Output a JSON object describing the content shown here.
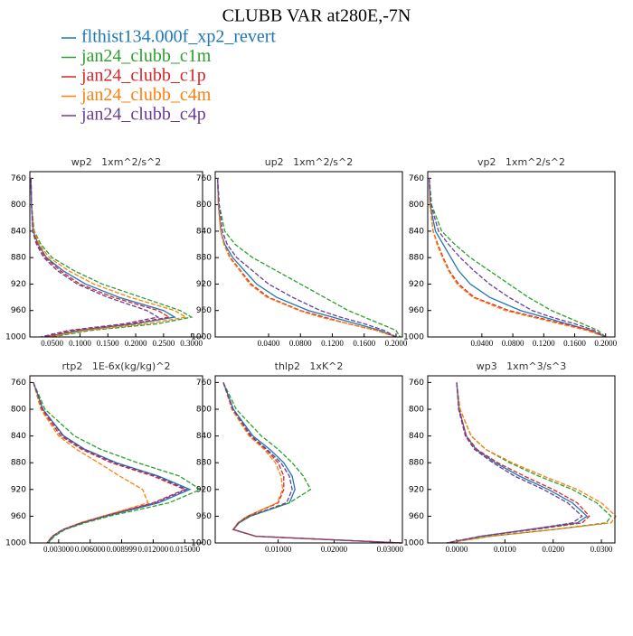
{
  "title": "CLUBB VAR at280E,-7N",
  "legend": [
    {
      "name": "flthist134.000f_xp2_revert",
      "color": "#1f77b4",
      "dash": false
    },
    {
      "name": "jan24_clubb_c1m",
      "color": "#2ca02c",
      "dash": true
    },
    {
      "name": "jan24_clubb_c1p",
      "color": "#d62728",
      "dash": true
    },
    {
      "name": "jan24_clubb_c4m",
      "color": "#ff7f0e",
      "dash": true
    },
    {
      "name": "jan24_clubb_c4p",
      "color": "#6a3d9a",
      "dash": true
    }
  ],
  "chart_data": [
    {
      "type": "line",
      "title": "wp2   1xm^2/s^2",
      "levels": [
        760,
        800,
        840,
        860,
        880,
        900,
        920,
        940,
        960,
        970,
        980,
        990,
        1000
      ],
      "ylim": [
        1000,
        750
      ],
      "yticks": [
        760,
        800,
        840,
        880,
        920,
        960,
        1000
      ],
      "xlim": [
        0.01,
        0.32
      ],
      "xticks": [
        {
          "value": 0.05,
          "label": "0.0500"
        },
        {
          "value": 0.1,
          "label": "0.1000"
        },
        {
          "value": 0.15,
          "label": "0.1500"
        },
        {
          "value": 0.2,
          "label": "0.2000"
        },
        {
          "value": 0.25,
          "label": "0.2500"
        },
        {
          "value": 0.3,
          "label": "0.3000"
        }
      ],
      "series": [
        {
          "values": [
            0.012,
            0.013,
            0.016,
            0.025,
            0.04,
            0.07,
            0.11,
            0.17,
            0.25,
            0.27,
            0.2,
            0.1,
            0.04
          ]
        },
        {
          "values": [
            0.012,
            0.013,
            0.018,
            0.03,
            0.05,
            0.09,
            0.14,
            0.21,
            0.28,
            0.3,
            0.24,
            0.12,
            0.05
          ]
        },
        {
          "values": [
            0.012,
            0.013,
            0.016,
            0.024,
            0.038,
            0.065,
            0.1,
            0.16,
            0.24,
            0.26,
            0.19,
            0.09,
            0.035
          ]
        },
        {
          "values": [
            0.012,
            0.013,
            0.017,
            0.027,
            0.045,
            0.08,
            0.125,
            0.19,
            0.27,
            0.29,
            0.22,
            0.11,
            0.045
          ]
        },
        {
          "values": [
            0.012,
            0.013,
            0.015,
            0.022,
            0.035,
            0.06,
            0.095,
            0.15,
            0.22,
            0.24,
            0.18,
            0.08,
            0.03
          ]
        }
      ]
    },
    {
      "type": "line",
      "title": "up2   1xm^2/s^2",
      "levels": [
        760,
        800,
        840,
        860,
        880,
        900,
        920,
        940,
        960,
        970,
        980,
        990,
        1000
      ],
      "ylim": [
        1000,
        750
      ],
      "yticks": [
        760,
        800,
        840,
        880,
        920,
        960,
        1000
      ],
      "xlim": [
        -0.027,
        0.208
      ],
      "xticks": [
        {
          "value": 0.04,
          "label": "0.0400"
        },
        {
          "value": 0.08,
          "label": "0.0800"
        },
        {
          "value": 0.12,
          "label": "0.1200"
        },
        {
          "value": 0.16,
          "label": "0.1600"
        },
        {
          "value": 0.2,
          "label": "0.2000"
        }
      ],
      "series": [
        {
          "values": [
            -0.024,
            -0.023,
            -0.02,
            -0.015,
            -0.005,
            0.01,
            0.025,
            0.05,
            0.09,
            0.12,
            0.15,
            0.18,
            0.2
          ]
        },
        {
          "values": [
            -0.024,
            -0.022,
            -0.015,
            -0.002,
            0.02,
            0.05,
            0.08,
            0.11,
            0.14,
            0.16,
            0.18,
            0.2,
            0.205
          ]
        },
        {
          "values": [
            -0.024,
            -0.023,
            -0.02,
            -0.016,
            -0.008,
            0.005,
            0.018,
            0.04,
            0.08,
            0.11,
            0.14,
            0.175,
            0.2
          ]
        },
        {
          "values": [
            -0.024,
            -0.023,
            -0.02,
            -0.016,
            -0.009,
            0.004,
            0.016,
            0.038,
            0.078,
            0.105,
            0.14,
            0.175,
            0.2
          ]
        },
        {
          "values": [
            -0.024,
            -0.022,
            -0.018,
            -0.012,
            0.0,
            0.02,
            0.04,
            0.07,
            0.105,
            0.13,
            0.16,
            0.185,
            0.2
          ]
        }
      ]
    },
    {
      "type": "line",
      "title": "vp2   1xm^2/s^2",
      "levels": [
        760,
        800,
        840,
        860,
        880,
        900,
        920,
        940,
        960,
        970,
        980,
        990,
        1000
      ],
      "ylim": [
        1000,
        750
      ],
      "yticks": [
        760,
        800,
        840,
        880,
        920,
        960,
        1000
      ],
      "xlim": [
        -0.03,
        0.212
      ],
      "xticks": [
        {
          "value": 0.04,
          "label": "0.0400"
        },
        {
          "value": 0.08,
          "label": "0.0800"
        },
        {
          "value": 0.12,
          "label": "0.1200"
        },
        {
          "value": 0.16,
          "label": "0.1600"
        },
        {
          "value": 0.2,
          "label": "0.2000"
        }
      ],
      "series": [
        {
          "values": [
            -0.028,
            -0.027,
            -0.02,
            -0.01,
            0.0,
            0.01,
            0.025,
            0.05,
            0.09,
            0.12,
            0.15,
            0.18,
            0.2
          ]
        },
        {
          "values": [
            -0.028,
            -0.025,
            -0.012,
            0.005,
            0.025,
            0.05,
            0.075,
            0.1,
            0.13,
            0.15,
            0.17,
            0.19,
            0.2
          ]
        },
        {
          "values": [
            -0.028,
            -0.027,
            -0.023,
            -0.017,
            -0.01,
            -0.002,
            0.01,
            0.03,
            0.075,
            0.11,
            0.145,
            0.18,
            0.2
          ]
        },
        {
          "values": [
            -0.028,
            -0.027,
            -0.023,
            -0.018,
            -0.011,
            -0.003,
            0.008,
            0.028,
            0.07,
            0.105,
            0.14,
            0.175,
            0.2
          ]
        },
        {
          "values": [
            -0.028,
            -0.026,
            -0.016,
            -0.003,
            0.012,
            0.03,
            0.05,
            0.075,
            0.105,
            0.13,
            0.16,
            0.185,
            0.2
          ]
        }
      ]
    },
    {
      "type": "line",
      "title": "rtp2   1E-6x(kg/kg)^2",
      "levels": [
        760,
        800,
        840,
        860,
        880,
        900,
        920,
        940,
        960,
        970,
        980,
        990,
        1000
      ],
      "ylim": [
        1000,
        750
      ],
      "yticks": [
        760,
        800,
        840,
        880,
        920,
        960,
        1000
      ],
      "xlim": [
        0.00026,
        0.0167
      ],
      "xticks": [
        {
          "value": 0.003,
          "label": "0.003000"
        },
        {
          "value": 0.006,
          "label": "0.006000"
        },
        {
          "value": 0.009,
          "label": "0.008999"
        },
        {
          "value": 0.012,
          "label": "0.012000"
        },
        {
          "value": 0.015,
          "label": "0.015000"
        }
      ],
      "series": [
        {
          "values": [
            0.0006,
            0.0015,
            0.0035,
            0.0055,
            0.0085,
            0.0125,
            0.0155,
            0.0125,
            0.0075,
            0.0053,
            0.0035,
            0.0025,
            0.002
          ]
        },
        {
          "values": [
            0.0006,
            0.0017,
            0.0045,
            0.007,
            0.0105,
            0.0145,
            0.0165,
            0.0135,
            0.0078,
            0.0055,
            0.0036,
            0.0026,
            0.002
          ]
        },
        {
          "values": [
            0.0006,
            0.0014,
            0.0032,
            0.0052,
            0.008,
            0.012,
            0.015,
            0.012,
            0.0072,
            0.0051,
            0.0034,
            0.0024,
            0.0019
          ]
        },
        {
          "values": [
            0.0006,
            0.0013,
            0.003,
            0.0047,
            0.0068,
            0.0088,
            0.011,
            0.0115,
            0.0072,
            0.005,
            0.0034,
            0.0024,
            0.0019
          ]
        },
        {
          "values": [
            0.0006,
            0.0015,
            0.0034,
            0.0054,
            0.0083,
            0.0123,
            0.0152,
            0.0122,
            0.0074,
            0.0052,
            0.0034,
            0.0024,
            0.0019
          ]
        }
      ]
    },
    {
      "type": "line",
      "title": "thlp2   1xK^2",
      "levels": [
        760,
        800,
        840,
        860,
        880,
        900,
        920,
        940,
        960,
        970,
        980,
        990,
        1000
      ],
      "ylim": [
        1000,
        750
      ],
      "yticks": [
        760,
        800,
        840,
        880,
        920,
        960,
        1000
      ],
      "xlim": [
        -0.00125,
        0.0322
      ],
      "xticks": [
        {
          "value": 0.01,
          "label": "0.01000"
        },
        {
          "value": 0.02,
          "label": "0.02000"
        },
        {
          "value": 0.03,
          "label": "0.03000"
        }
      ],
      "series": [
        {
          "values": [
            0.0002,
            0.002,
            0.0055,
            0.0085,
            0.011,
            0.0125,
            0.013,
            0.012,
            0.005,
            0.003,
            0.002,
            0.006,
            0.032
          ]
        },
        {
          "values": [
            0.0002,
            0.0025,
            0.007,
            0.01,
            0.0125,
            0.0145,
            0.0158,
            0.012,
            0.005,
            0.003,
            0.002,
            0.006,
            0.032
          ]
        },
        {
          "values": [
            0.0002,
            0.0018,
            0.005,
            0.0078,
            0.01,
            0.011,
            0.011,
            0.01,
            0.0045,
            0.0028,
            0.002,
            0.006,
            0.032
          ]
        },
        {
          "values": [
            0.0002,
            0.0017,
            0.0048,
            0.0075,
            0.0095,
            0.0105,
            0.0108,
            0.0098,
            0.0045,
            0.0028,
            0.0019,
            0.006,
            0.032
          ]
        },
        {
          "values": [
            0.0002,
            0.0019,
            0.0052,
            0.008,
            0.0105,
            0.012,
            0.0125,
            0.0115,
            0.0048,
            0.0029,
            0.002,
            0.006,
            0.032
          ]
        }
      ]
    },
    {
      "type": "line",
      "title": "wp3   1xm^3/s^3",
      "levels": [
        760,
        800,
        840,
        860,
        880,
        900,
        920,
        940,
        960,
        970,
        980,
        990,
        1000
      ],
      "ylim": [
        1000,
        750
      ],
      "yticks": [
        760,
        800,
        840,
        880,
        920,
        960,
        1000
      ],
      "xlim": [
        -0.006,
        0.0328
      ],
      "xticks": [
        {
          "value": 0,
          "label": "0.0000"
        },
        {
          "value": 0.01,
          "label": "0.0100"
        },
        {
          "value": 0.02,
          "label": "0.0200"
        },
        {
          "value": 0.03,
          "label": "0.0300"
        }
      ],
      "series": [
        {
          "values": [
            0.0,
            0.0005,
            0.002,
            0.004,
            0.008,
            0.013,
            0.019,
            0.024,
            0.027,
            0.025,
            0.015,
            0.005,
            -0.002
          ]
        },
        {
          "values": [
            0.0,
            0.0007,
            0.003,
            0.006,
            0.011,
            0.017,
            0.024,
            0.029,
            0.032,
            0.031,
            0.02,
            0.007,
            -0.002
          ]
        },
        {
          "values": [
            0.0,
            0.0005,
            0.002,
            0.0042,
            0.0085,
            0.014,
            0.02,
            0.025,
            0.0275,
            0.026,
            0.016,
            0.005,
            -0.002
          ]
        },
        {
          "values": [
            0.0,
            0.0007,
            0.003,
            0.006,
            0.0115,
            0.018,
            0.025,
            0.03,
            0.033,
            0.032,
            0.02,
            0.007,
            -0.002
          ]
        },
        {
          "values": [
            0.0,
            0.0004,
            0.0018,
            0.0037,
            0.0075,
            0.012,
            0.018,
            0.023,
            0.026,
            0.024,
            0.015,
            0.005,
            -0.002
          ]
        }
      ]
    }
  ]
}
